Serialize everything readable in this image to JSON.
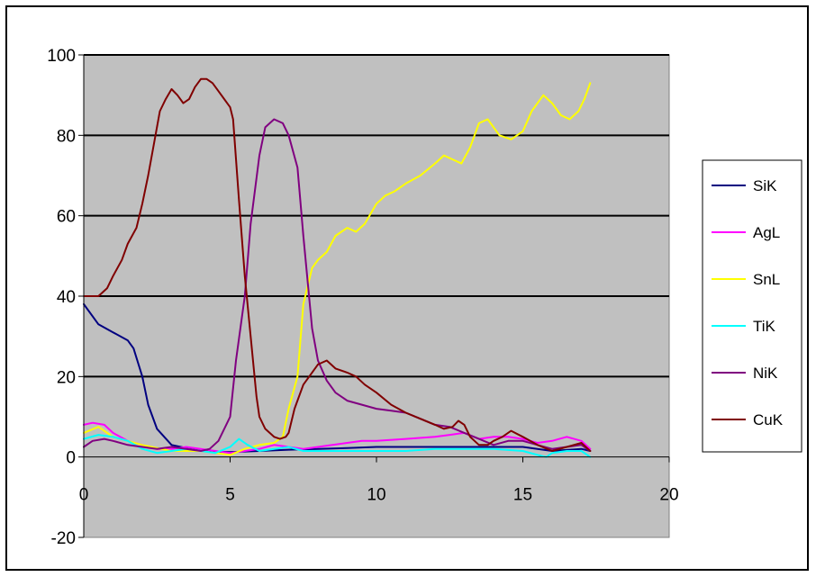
{
  "chart_data": {
    "type": "line",
    "title": "",
    "xlabel": "",
    "ylabel": "",
    "xlim": [
      0,
      20
    ],
    "ylim": [
      -20,
      100
    ],
    "x_ticks": [
      0,
      5,
      10,
      15,
      20
    ],
    "y_ticks": [
      -20,
      0,
      20,
      40,
      60,
      80,
      100
    ],
    "x_tick_labels": [
      "0",
      "5",
      "10",
      "15",
      "20"
    ],
    "y_tick_labels": [
      "-20",
      "0",
      "20",
      "40",
      "60",
      "80",
      "100"
    ],
    "grid": "horizontal major lines",
    "plot_background": "#c0c0c0",
    "legend_position": "right",
    "series": [
      {
        "name": "SiK",
        "color": "#000080",
        "x": [
          0,
          0.5,
          1,
          1.5,
          1.7,
          2,
          2.2,
          2.5,
          3,
          4,
          5,
          6,
          7,
          8,
          9,
          10,
          11,
          12,
          13,
          14,
          15,
          16,
          17,
          17.3
        ],
        "y": [
          38,
          33,
          31,
          29,
          27,
          20,
          13,
          7,
          3,
          1.5,
          1.2,
          1.5,
          1.8,
          2,
          2.2,
          2.5,
          2.5,
          2.5,
          2.5,
          2.5,
          2.5,
          1.5,
          2,
          1.5
        ]
      },
      {
        "name": "AgL",
        "color": "#ff00ff",
        "x": [
          0,
          0.3,
          0.7,
          1,
          1.5,
          2,
          2.5,
          3,
          3.5,
          4,
          4.5,
          5,
          5.5,
          6,
          6.5,
          7,
          7.5,
          8,
          8.5,
          9,
          9.5,
          10,
          11,
          12,
          12.5,
          13,
          13.5,
          14,
          14.5,
          15,
          15.5,
          16,
          16.5,
          17,
          17.3
        ],
        "y": [
          8,
          8.5,
          8,
          6,
          4,
          3,
          2,
          2,
          2.5,
          2,
          1.5,
          1,
          1.5,
          2,
          3,
          2.5,
          2,
          2.5,
          3,
          3.5,
          4,
          4,
          4.5,
          5,
          5.5,
          6,
          4.5,
          5,
          5,
          4.5,
          3.5,
          4,
          5,
          4,
          2
        ]
      },
      {
        "name": "SnL",
        "color": "#ffff00",
        "x": [
          0,
          0.5,
          1,
          1.5,
          2,
          3,
          4,
          5,
          5.5,
          6,
          6.5,
          6.8,
          7,
          7.3,
          7.5,
          7.8,
          8,
          8.3,
          8.6,
          9,
          9.3,
          9.6,
          10,
          10.3,
          10.6,
          11,
          11.5,
          12,
          12.3,
          12.6,
          12.9,
          13.2,
          13.5,
          13.8,
          14.2,
          14.6,
          15,
          15.3,
          15.7,
          16,
          16.3,
          16.6,
          16.9,
          17.1,
          17.3
        ],
        "y": [
          6,
          7.5,
          5,
          4,
          3,
          1.5,
          1.5,
          0.5,
          2,
          3,
          3.5,
          5,
          12,
          20,
          38,
          47,
          49,
          51,
          55,
          57,
          56,
          58,
          63,
          65,
          66,
          68,
          70,
          73,
          75,
          74,
          73,
          77,
          83,
          84,
          80,
          79,
          81,
          86,
          90,
          88,
          85,
          84,
          86,
          89,
          93
        ]
      },
      {
        "name": "TiK",
        "color": "#00ffff",
        "x": [
          0,
          0.5,
          1,
          1.5,
          2,
          2.5,
          3,
          3.5,
          4,
          4.5,
          5,
          5.3,
          5.6,
          6,
          6.5,
          7,
          7.5,
          8,
          9,
          10,
          11,
          12,
          13,
          14,
          15,
          15.5,
          15.8,
          16,
          16.5,
          17,
          17.3
        ],
        "y": [
          4.5,
          5.5,
          5,
          4,
          2,
          1,
          1.5,
          2,
          1.5,
          1,
          2.5,
          4.5,
          3,
          1.5,
          2,
          2.5,
          1.5,
          1.5,
          1.5,
          1.5,
          1.5,
          2,
          2,
          2,
          1.5,
          0.5,
          0,
          1,
          1.5,
          1.5,
          0
        ]
      },
      {
        "name": "NiK",
        "color": "#800080",
        "x": [
          0,
          0.3,
          0.7,
          1,
          1.5,
          2,
          2.5,
          3,
          3.5,
          4,
          4.3,
          4.6,
          5,
          5.2,
          5.5,
          5.7,
          6,
          6.2,
          6.5,
          6.8,
          7,
          7.3,
          7.5,
          7.8,
          8,
          8.3,
          8.6,
          9,
          9.5,
          10,
          10.5,
          11,
          11.5,
          12,
          12.5,
          13,
          13.5,
          14,
          14.5,
          15,
          15.5,
          16,
          16.5,
          17,
          17.3
        ],
        "y": [
          2.5,
          4,
          4.5,
          4,
          3,
          2.5,
          2,
          2.5,
          2,
          1.5,
          2,
          4,
          10,
          24,
          40,
          58,
          75,
          82,
          84,
          83,
          80,
          72,
          55,
          32,
          24,
          19,
          16,
          14,
          13,
          12,
          11.5,
          11,
          9.5,
          8,
          7.5,
          6,
          4.5,
          3,
          4,
          4,
          3,
          2,
          2.5,
          3,
          1.5
        ]
      },
      {
        "name": "CuK",
        "color": "#800000",
        "x": [
          0,
          0.2,
          0.5,
          0.8,
          1,
          1.3,
          1.5,
          1.8,
          2,
          2.2,
          2.4,
          2.6,
          2.8,
          3,
          3.2,
          3.4,
          3.6,
          3.8,
          4,
          4.2,
          4.4,
          4.6,
          4.8,
          5,
          5.1,
          5.3,
          5.5,
          5.7,
          5.9,
          6,
          6.2,
          6.5,
          6.7,
          6.9,
          7,
          7.2,
          7.5,
          7.8,
          8,
          8.3,
          8.6,
          9,
          9.3,
          9.6,
          10,
          10.5,
          11,
          11.5,
          12,
          12.3,
          12.6,
          12.8,
          13,
          13.2,
          13.5,
          13.8,
          14,
          14.3,
          14.6,
          15,
          15.5,
          16,
          16.5,
          17,
          17.3
        ],
        "y": [
          40,
          40,
          40,
          42,
          45,
          49,
          53,
          57,
          63,
          70,
          78,
          86,
          89,
          91.5,
          90,
          88,
          89,
          92,
          94,
          94,
          93,
          91,
          89,
          87,
          84,
          64,
          45,
          30,
          15,
          10,
          7,
          5,
          4.5,
          5,
          6,
          12,
          18,
          21,
          23,
          24,
          22,
          21,
          20,
          18,
          16,
          13,
          11,
          9.5,
          8,
          7,
          7.5,
          9,
          8,
          5,
          3,
          3,
          4,
          5,
          6.5,
          5,
          3,
          1.5,
          2.5,
          3.5,
          1.5
        ]
      }
    ]
  }
}
